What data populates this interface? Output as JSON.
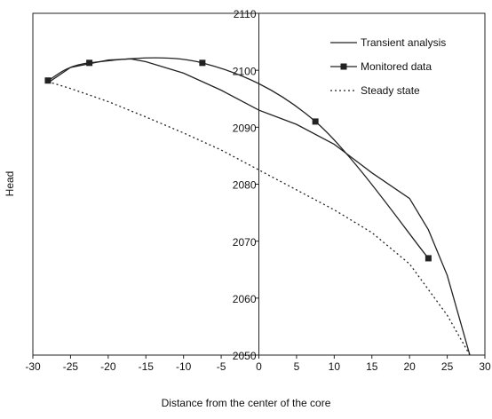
{
  "chart_data": {
    "type": "line",
    "x_label": "Distance from the center of the core",
    "y_label": "Head",
    "xlim": [
      -30,
      30
    ],
    "xticks": [
      -30,
      -25,
      -20,
      -15,
      -10,
      -5,
      0,
      5,
      10,
      15,
      20,
      25,
      30
    ],
    "ylim": [
      2050,
      2110
    ],
    "yticks": [
      2050,
      2060,
      2070,
      2080,
      2090,
      2100,
      2110
    ],
    "legend": "top-right",
    "series": [
      {
        "name": "Transient analysis",
        "color": "#222222",
        "line_style": "solid",
        "smooth": false,
        "x": [
          -28,
          -25,
          -20,
          -17,
          -15,
          -10,
          -5,
          0,
          5,
          10,
          12.5,
          15,
          20,
          22.5,
          25,
          28
        ],
        "values": [
          2097.8,
          2100.5,
          2101.8,
          2102,
          2101.5,
          2099.5,
          2096.5,
          2093,
          2090.5,
          2087,
          2084.5,
          2082,
          2077.5,
          2072,
          2064,
          2050
        ]
      },
      {
        "name": "Monitored data",
        "color": "#222222",
        "line_style": "solid",
        "marker": "square",
        "smooth": true,
        "x": [
          -28,
          -22.5,
          -7.5,
          7.5,
          22.5
        ],
        "values": [
          2098.2,
          2101.3,
          2101.3,
          2091,
          2067
        ]
      },
      {
        "name": "Steady state",
        "color": "#222222",
        "line_style": "dotted",
        "smooth": false,
        "x": [
          -28,
          -25,
          -20,
          -15,
          -10,
          -5,
          0,
          5,
          10,
          15,
          20,
          25,
          28
        ],
        "values": [
          2098,
          2096.8,
          2094.5,
          2091.8,
          2089,
          2086,
          2082.5,
          2079,
          2075.5,
          2071.5,
          2066,
          2057,
          2050
        ]
      }
    ]
  }
}
